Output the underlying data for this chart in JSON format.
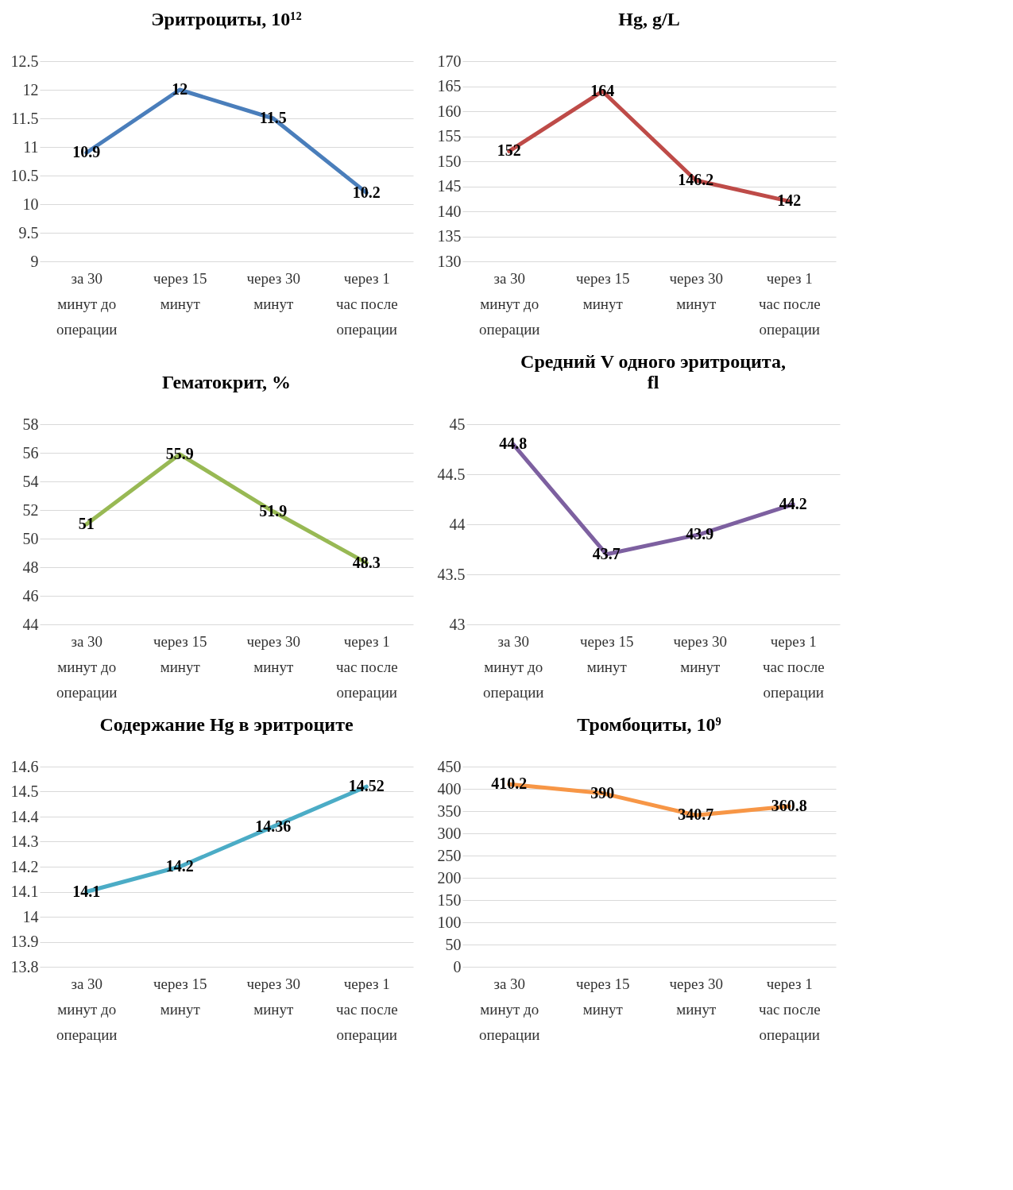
{
  "chart_data": [
    {
      "type": "line",
      "title": "Эритроциты, 10¹²",
      "categories": [
        "за 30 минут до операции",
        "через 15 минут",
        "через 30 минут",
        "через 1 час после операции"
      ],
      "series": [
        {
          "color": "#4a7ebb",
          "values": [
            10.9,
            12,
            11.5,
            10.2
          ]
        }
      ],
      "ylim": [
        9,
        12.5
      ],
      "yticks": [
        9,
        9.5,
        10,
        10.5,
        11,
        11.5,
        12,
        12.5
      ],
      "grid": "y",
      "data_labels": true
    },
    {
      "type": "line",
      "title": "Hg, g/L",
      "categories": [
        "за 30 минут до операции",
        "через 15 минут",
        "через 30 минут",
        "через 1 час после операции"
      ],
      "series": [
        {
          "color": "#be4b48",
          "values": [
            152,
            164,
            146.2,
            142
          ]
        }
      ],
      "ylim": [
        130,
        170
      ],
      "yticks": [
        130,
        135,
        140,
        145,
        150,
        155,
        160,
        165,
        170
      ],
      "grid": "y",
      "data_labels": true
    },
    {
      "type": "line",
      "title": "Гематокрит, %",
      "categories": [
        "за 30 минут до операции",
        "через 15 минут",
        "через 30 минут",
        "через 1 час после операции"
      ],
      "series": [
        {
          "color": "#98b954",
          "values": [
            51,
            55.9,
            51.9,
            48.3
          ]
        }
      ],
      "ylim": [
        44,
        58
      ],
      "yticks": [
        44,
        46,
        48,
        50,
        52,
        54,
        56,
        58
      ],
      "grid": "y",
      "data_labels": true
    },
    {
      "type": "line",
      "title": "Средний V одного эритроцита, fl",
      "categories": [
        "за 30 минут до операции",
        "через 15 минут",
        "через 30 минут",
        "через 1 час после операции"
      ],
      "series": [
        {
          "color": "#7d60a0",
          "values": [
            44.8,
            43.7,
            43.9,
            44.2
          ]
        }
      ],
      "ylim": [
        43,
        45
      ],
      "yticks": [
        43,
        43.5,
        44,
        44.5,
        45
      ],
      "grid": "y",
      "data_labels": true
    },
    {
      "type": "line",
      "title": "Содержание Hg в эритроците",
      "categories": [
        "за 30 минут до операции",
        "через 15 минут",
        "через 30 минут",
        "через 1 час после операции"
      ],
      "series": [
        {
          "color": "#4bacc6",
          "values": [
            14.1,
            14.2,
            14.36,
            14.52
          ]
        }
      ],
      "ylim": [
        13.8,
        14.6
      ],
      "yticks": [
        13.8,
        13.9,
        14,
        14.1,
        14.2,
        14.3,
        14.4,
        14.5,
        14.6
      ],
      "grid": "y",
      "data_labels": true
    },
    {
      "type": "line",
      "title": "Тромбоциты, 10⁹",
      "categories": [
        "за 30 минут до операции",
        "через 15 минут",
        "через 30 минут",
        "через 1 час после операции"
      ],
      "series": [
        {
          "color": "#f79646",
          "values": [
            410.2,
            390,
            340.7,
            360.8
          ]
        }
      ],
      "ylim": [
        0,
        450
      ],
      "yticks": [
        0,
        50,
        100,
        150,
        200,
        250,
        300,
        350,
        400,
        450
      ],
      "grid": "y",
      "data_labels": true
    }
  ]
}
